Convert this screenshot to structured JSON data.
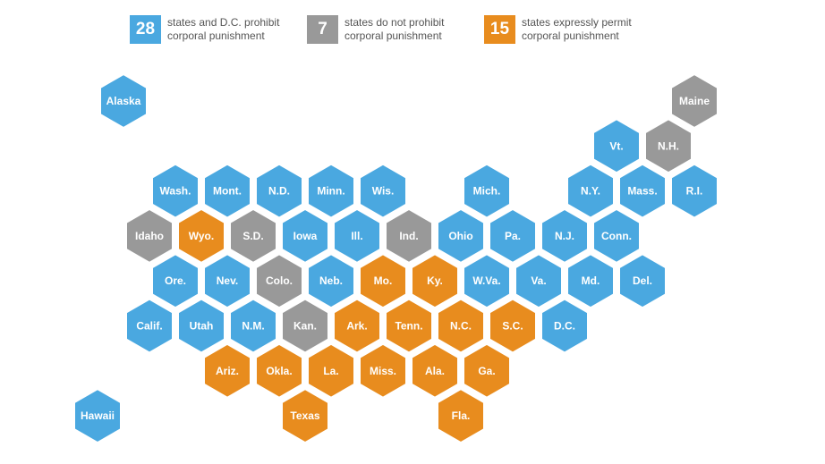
{
  "legend": [
    {
      "count": "28",
      "text1": "states and D.C. prohibit",
      "text2": "corporal punishment",
      "category": "prohibit"
    },
    {
      "count": "7",
      "text1": "states do not prohibit",
      "text2": "corporal punishment",
      "category": "none"
    },
    {
      "count": "15",
      "text1": "states expressly permit",
      "text2": "corporal punishment",
      "category": "permit"
    }
  ],
  "colors": {
    "prohibit": "#4aa8e0",
    "none": "#999999",
    "permit": "#e88c1e"
  },
  "states": [
    {
      "label": "Alaska",
      "cat": "prohibit",
      "row": 0,
      "col": 0
    },
    {
      "label": "Maine",
      "cat": "none",
      "row": 0,
      "col": 11
    },
    {
      "label": "Vt.",
      "cat": "prohibit",
      "row": 1,
      "col": 10
    },
    {
      "label": "N.H.",
      "cat": "none",
      "row": 1,
      "col": 11
    },
    {
      "label": "Wash.",
      "cat": "prohibit",
      "row": 2,
      "col": 1
    },
    {
      "label": "Mont.",
      "cat": "prohibit",
      "row": 2,
      "col": 2
    },
    {
      "label": "N.D.",
      "cat": "prohibit",
      "row": 2,
      "col": 3
    },
    {
      "label": "Minn.",
      "cat": "prohibit",
      "row": 2,
      "col": 4
    },
    {
      "label": "Wis.",
      "cat": "prohibit",
      "row": 2,
      "col": 5
    },
    {
      "label": "Mich.",
      "cat": "prohibit",
      "row": 2,
      "col": 7
    },
    {
      "label": "N.Y.",
      "cat": "prohibit",
      "row": 2,
      "col": 9
    },
    {
      "label": "Mass.",
      "cat": "prohibit",
      "row": 2,
      "col": 10
    },
    {
      "label": "R.I.",
      "cat": "prohibit",
      "row": 2,
      "col": 11
    },
    {
      "label": "Idaho",
      "cat": "none",
      "row": 3,
      "col": 1
    },
    {
      "label": "Wyo.",
      "cat": "permit",
      "row": 3,
      "col": 2
    },
    {
      "label": "S.D.",
      "cat": "none",
      "row": 3,
      "col": 3
    },
    {
      "label": "Iowa",
      "cat": "prohibit",
      "row": 3,
      "col": 4
    },
    {
      "label": "Ill.",
      "cat": "prohibit",
      "row": 3,
      "col": 5
    },
    {
      "label": "Ind.",
      "cat": "none",
      "row": 3,
      "col": 6
    },
    {
      "label": "Ohio",
      "cat": "prohibit",
      "row": 3,
      "col": 7
    },
    {
      "label": "Pa.",
      "cat": "prohibit",
      "row": 3,
      "col": 8
    },
    {
      "label": "N.J.",
      "cat": "prohibit",
      "row": 3,
      "col": 9
    },
    {
      "label": "Conn.",
      "cat": "prohibit",
      "row": 3,
      "col": 10
    },
    {
      "label": "Ore.",
      "cat": "prohibit",
      "row": 4,
      "col": 1
    },
    {
      "label": "Nev.",
      "cat": "prohibit",
      "row": 4,
      "col": 2
    },
    {
      "label": "Colo.",
      "cat": "none",
      "row": 4,
      "col": 3
    },
    {
      "label": "Neb.",
      "cat": "prohibit",
      "row": 4,
      "col": 4
    },
    {
      "label": "Mo.",
      "cat": "permit",
      "row": 4,
      "col": 5
    },
    {
      "label": "Ky.",
      "cat": "permit",
      "row": 4,
      "col": 6
    },
    {
      "label": "W.Va.",
      "cat": "prohibit",
      "row": 4,
      "col": 7
    },
    {
      "label": "Va.",
      "cat": "prohibit",
      "row": 4,
      "col": 8
    },
    {
      "label": "Md.",
      "cat": "prohibit",
      "row": 4,
      "col": 9
    },
    {
      "label": "Del.",
      "cat": "prohibit",
      "row": 4,
      "col": 10
    },
    {
      "label": "Calif.",
      "cat": "prohibit",
      "row": 5,
      "col": 1
    },
    {
      "label": "Utah",
      "cat": "prohibit",
      "row": 5,
      "col": 2
    },
    {
      "label": "N.M.",
      "cat": "prohibit",
      "row": 5,
      "col": 3
    },
    {
      "label": "Kan.",
      "cat": "none",
      "row": 5,
      "col": 4
    },
    {
      "label": "Ark.",
      "cat": "permit",
      "row": 5,
      "col": 5
    },
    {
      "label": "Tenn.",
      "cat": "permit",
      "row": 5,
      "col": 6
    },
    {
      "label": "N.C.",
      "cat": "permit",
      "row": 5,
      "col": 7
    },
    {
      "label": "S.C.",
      "cat": "permit",
      "row": 5,
      "col": 8
    },
    {
      "label": "D.C.",
      "cat": "prohibit",
      "row": 5,
      "col": 9
    },
    {
      "label": "Ariz.",
      "cat": "permit",
      "row": 6,
      "col": 2
    },
    {
      "label": "Okla.",
      "cat": "permit",
      "row": 6,
      "col": 3
    },
    {
      "label": "La.",
      "cat": "permit",
      "row": 6,
      "col": 4
    },
    {
      "label": "Miss.",
      "cat": "permit",
      "row": 6,
      "col": 5
    },
    {
      "label": "Ala.",
      "cat": "permit",
      "row": 6,
      "col": 6
    },
    {
      "label": "Ga.",
      "cat": "permit",
      "row": 6,
      "col": 7
    },
    {
      "label": "Hawaii",
      "cat": "prohibit",
      "row": 7,
      "col": 0
    },
    {
      "label": "Texas",
      "cat": "permit",
      "row": 7,
      "col": 4
    },
    {
      "label": "Fla.",
      "cat": "permit",
      "row": 7,
      "col": 7
    }
  ]
}
